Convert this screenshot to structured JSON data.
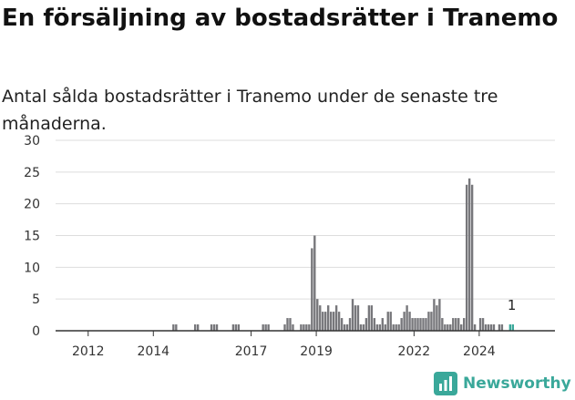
{
  "title": "En försäljning av bostadsrätter i Tranemo",
  "subtitle": "Antal sålda bostadsrätter i Tranemo under de senaste tre månaderna.",
  "brand": {
    "name": "Newsworthy",
    "color": "#3aa89a",
    "icon": "newsworthy-logo-icon"
  },
  "colors": {
    "bar": "#77777b",
    "highlight": "#3aa89a",
    "grid": "#dddddd",
    "axis": "#333333"
  },
  "chart_data": {
    "type": "bar",
    "title": "En försäljning av bostadsrätter i Tranemo",
    "subtitle": "Antal sålda bostadsrätter i Tranemo under de senaste tre månaderna.",
    "xlabel": "",
    "ylabel": "",
    "ylim": [
      0,
      30
    ],
    "yticks": [
      0,
      5,
      10,
      15,
      20,
      25,
      30
    ],
    "xticks": [
      "2012",
      "2014",
      "2017",
      "2019",
      "2022",
      "2024"
    ],
    "grid": "horizontal",
    "annotation": {
      "text": "1",
      "month": "2025-01"
    },
    "highlight_months": [
      "2024-12",
      "2025-01"
    ],
    "series": [
      {
        "period": "monthly",
        "months_with_sales": [
          [
            "2014-08",
            1
          ],
          [
            "2014-09",
            1
          ],
          [
            "2015-04",
            1
          ],
          [
            "2015-05",
            1
          ],
          [
            "2015-10",
            1
          ],
          [
            "2015-11",
            1
          ],
          [
            "2015-12",
            1
          ],
          [
            "2016-06",
            1
          ],
          [
            "2016-07",
            1
          ],
          [
            "2016-08",
            1
          ],
          [
            "2017-05",
            1
          ],
          [
            "2017-06",
            1
          ],
          [
            "2017-07",
            1
          ],
          [
            "2018-01",
            1
          ],
          [
            "2018-02",
            2
          ],
          [
            "2018-03",
            2
          ],
          [
            "2018-04",
            1
          ],
          [
            "2018-07",
            1
          ],
          [
            "2018-08",
            1
          ],
          [
            "2018-09",
            1
          ],
          [
            "2018-10",
            1
          ],
          [
            "2018-11",
            13
          ],
          [
            "2018-12",
            15
          ],
          [
            "2019-01",
            5
          ],
          [
            "2019-02",
            4
          ],
          [
            "2019-03",
            3
          ],
          [
            "2019-04",
            3
          ],
          [
            "2019-05",
            4
          ],
          [
            "2019-06",
            3
          ],
          [
            "2019-07",
            3
          ],
          [
            "2019-08",
            4
          ],
          [
            "2019-09",
            3
          ],
          [
            "2019-10",
            2
          ],
          [
            "2019-11",
            1
          ],
          [
            "2019-12",
            1
          ],
          [
            "2020-01",
            2
          ],
          [
            "2020-02",
            5
          ],
          [
            "2020-03",
            4
          ],
          [
            "2020-04",
            4
          ],
          [
            "2020-05",
            1
          ],
          [
            "2020-06",
            1
          ],
          [
            "2020-07",
            2
          ],
          [
            "2020-08",
            4
          ],
          [
            "2020-09",
            4
          ],
          [
            "2020-10",
            2
          ],
          [
            "2020-11",
            1
          ],
          [
            "2020-12",
            1
          ],
          [
            "2021-01",
            2
          ],
          [
            "2021-02",
            1
          ],
          [
            "2021-03",
            3
          ],
          [
            "2021-04",
            3
          ],
          [
            "2021-05",
            1
          ],
          [
            "2021-06",
            1
          ],
          [
            "2021-07",
            1
          ],
          [
            "2021-08",
            2
          ],
          [
            "2021-09",
            3
          ],
          [
            "2021-10",
            4
          ],
          [
            "2021-11",
            3
          ],
          [
            "2021-12",
            2
          ],
          [
            "2022-01",
            2
          ],
          [
            "2022-02",
            2
          ],
          [
            "2022-03",
            2
          ],
          [
            "2022-04",
            2
          ],
          [
            "2022-05",
            2
          ],
          [
            "2022-06",
            3
          ],
          [
            "2022-07",
            3
          ],
          [
            "2022-08",
            5
          ],
          [
            "2022-09",
            4
          ],
          [
            "2022-10",
            5
          ],
          [
            "2022-11",
            2
          ],
          [
            "2022-12",
            1
          ],
          [
            "2023-01",
            1
          ],
          [
            "2023-02",
            1
          ],
          [
            "2023-03",
            2
          ],
          [
            "2023-04",
            2
          ],
          [
            "2023-05",
            2
          ],
          [
            "2023-06",
            1
          ],
          [
            "2023-07",
            2
          ],
          [
            "2023-08",
            23
          ],
          [
            "2023-09",
            24
          ],
          [
            "2023-10",
            23
          ],
          [
            "2023-11",
            1
          ],
          [
            "2024-01",
            2
          ],
          [
            "2024-02",
            2
          ],
          [
            "2024-03",
            1
          ],
          [
            "2024-04",
            1
          ],
          [
            "2024-05",
            1
          ],
          [
            "2024-06",
            1
          ],
          [
            "2024-08",
            1
          ],
          [
            "2024-09",
            1
          ],
          [
            "2024-12",
            1
          ],
          [
            "2025-01",
            1
          ]
        ]
      }
    ]
  }
}
